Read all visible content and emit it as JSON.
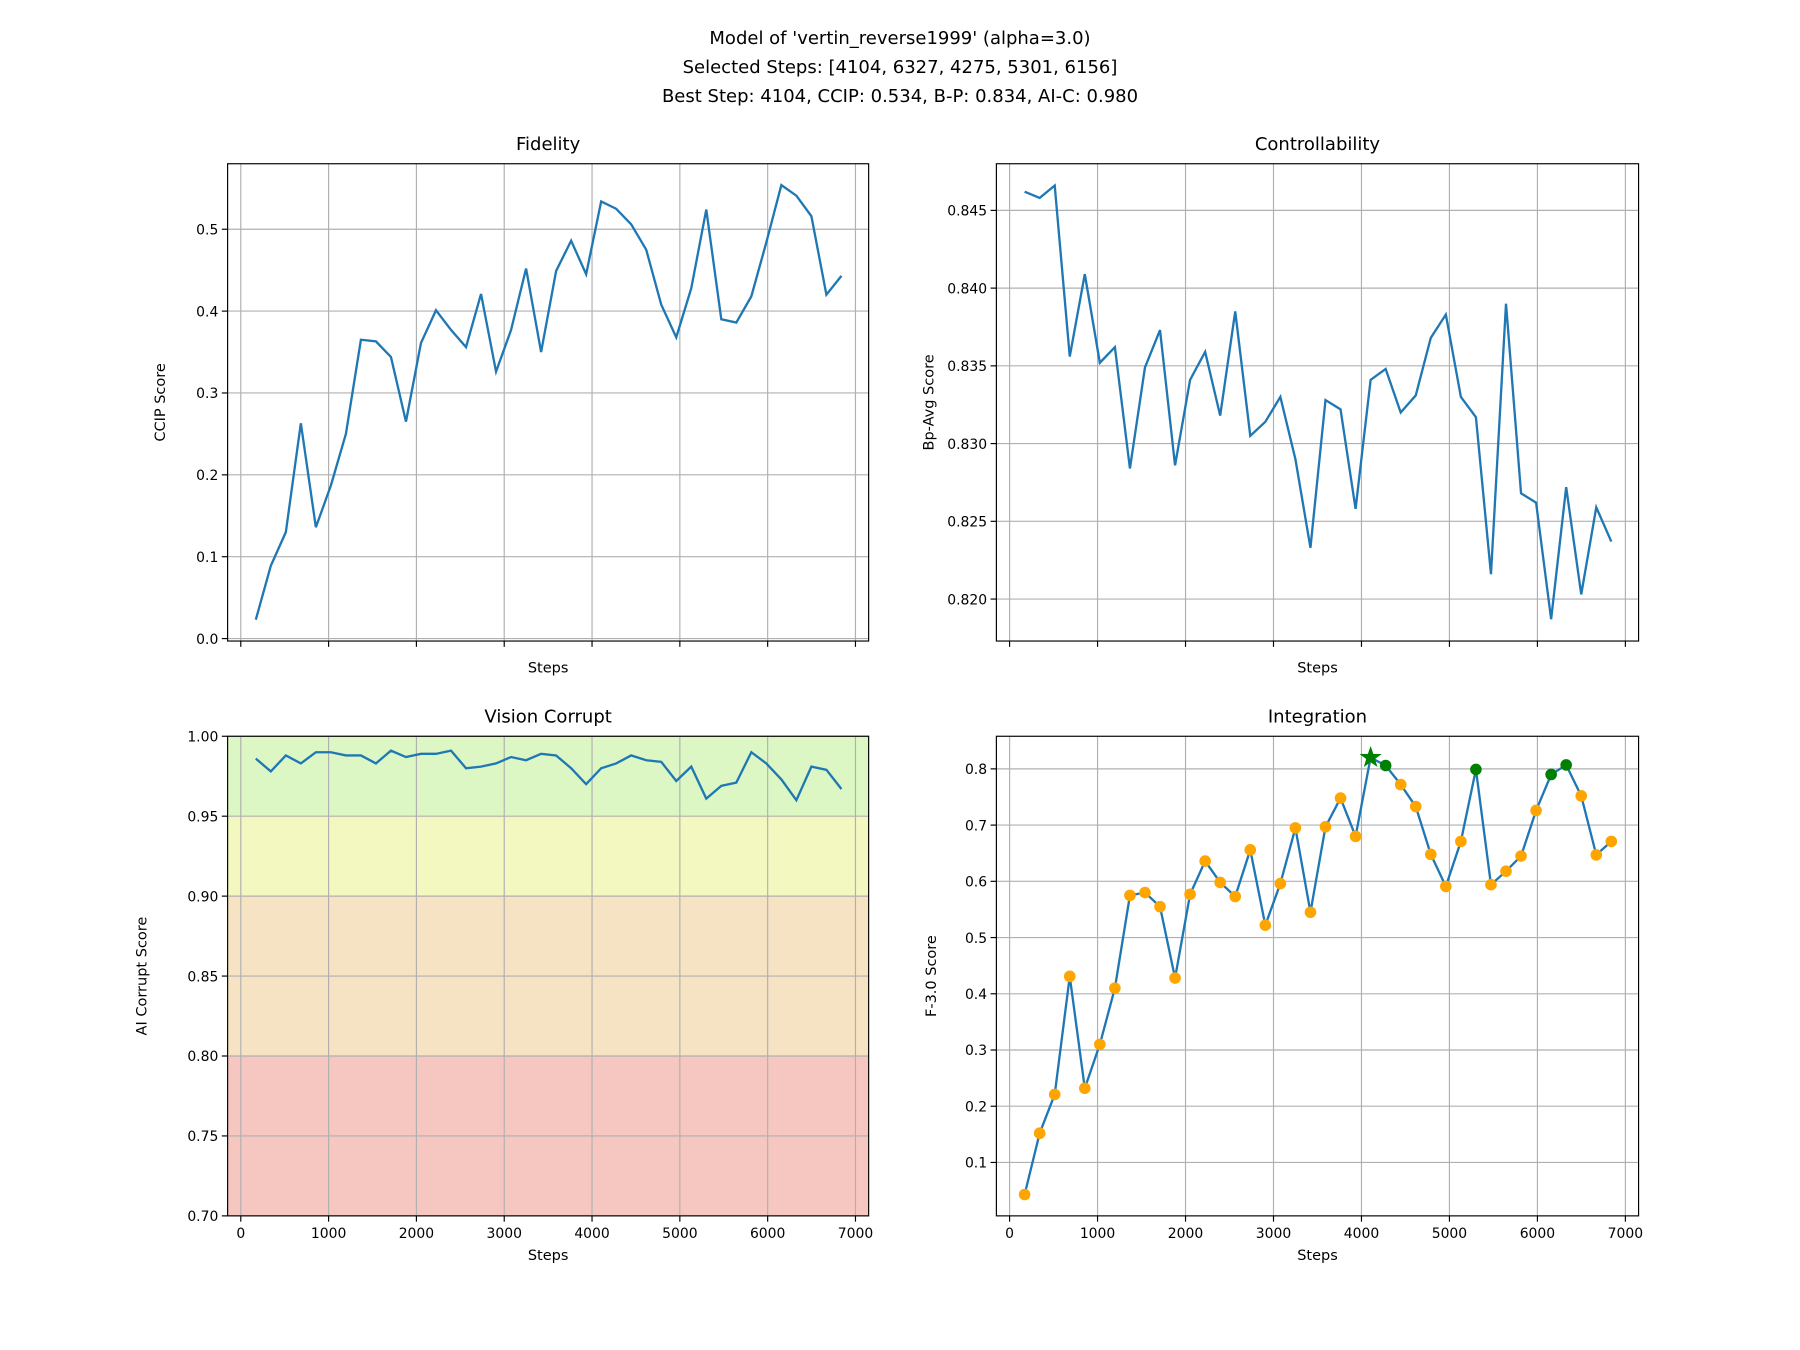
{
  "suptitle": [
    "Model of 'vertin_reverse1999' (alpha=3.0)",
    "Selected Steps: [4104, 6327, 4275, 5301, 6156]",
    "Best Step: 4104, CCIP: 0.534, B-P: 0.834, AI-C: 0.980"
  ],
  "colors": {
    "line": "#1f77b4",
    "point": "#ffa500",
    "selected": "#008000",
    "grid": "#b0b0b0",
    "bands": {
      "good": "#dcf7c4",
      "ok": "#f3f7c0",
      "warn": "#f5e3c3",
      "bad": "#f5c7c0"
    }
  },
  "chart_data": [
    {
      "id": "fidelity",
      "type": "line",
      "title": "Fidelity",
      "xlabel": "Steps",
      "ylabel": "CCIP Score",
      "xlim": [
        -150,
        7150
      ],
      "ylim": [
        -0.003,
        0.58
      ],
      "yticks": [
        0.0,
        0.1,
        0.2,
        0.3,
        0.4,
        0.5
      ],
      "ytick_fmt": 1,
      "xtick_labels": false,
      "grid": true,
      "y": [
        0.023,
        0.089,
        0.13,
        0.263,
        0.136,
        0.187,
        0.25,
        0.365,
        0.363,
        0.344,
        0.265,
        0.361,
        0.401,
        0.377,
        0.356,
        0.421,
        0.326,
        0.377,
        0.452,
        0.35,
        0.449,
        0.486,
        0.445,
        0.534,
        0.525,
        0.506,
        0.475,
        0.408,
        0.368,
        0.428,
        0.524,
        0.39,
        0.386,
        0.418,
        0.484,
        0.554,
        0.541,
        0.516,
        0.42,
        0.443
      ]
    },
    {
      "id": "controllability",
      "type": "line",
      "title": "Controllability",
      "xlabel": "Steps",
      "ylabel": "Bp-Avg Score",
      "xlim": [
        -150,
        7150
      ],
      "ylim": [
        0.8173,
        0.848
      ],
      "yticks": [
        0.82,
        0.825,
        0.83,
        0.835,
        0.84,
        0.845
      ],
      "ytick_fmt": 3,
      "xtick_labels": false,
      "grid": true,
      "y": [
        0.8462,
        0.8458,
        0.8466,
        0.8356,
        0.8409,
        0.8352,
        0.8362,
        0.8284,
        0.8349,
        0.8373,
        0.8286,
        0.8341,
        0.8359,
        0.8318,
        0.8385,
        0.8305,
        0.8314,
        0.833,
        0.829,
        0.8233,
        0.8328,
        0.8322,
        0.8258,
        0.8341,
        0.8348,
        0.832,
        0.8331,
        0.8368,
        0.8383,
        0.833,
        0.8317,
        0.8216,
        0.839,
        0.8268,
        0.8262,
        0.8187,
        0.8272,
        0.8203,
        0.8259,
        0.8237
      ]
    },
    {
      "id": "vision-corrupt",
      "type": "line",
      "title": "Vision Corrupt",
      "xlabel": "Steps",
      "ylabel": "AI Corrupt Score",
      "xlim": [
        -150,
        7150
      ],
      "ylim": [
        0.7,
        1.0
      ],
      "yticks": [
        0.7,
        0.75,
        0.8,
        0.85,
        0.9,
        0.95,
        1.0
      ],
      "ytick_fmt": 2,
      "xtick_labels": true,
      "grid": true,
      "bands": [
        {
          "from": 0.95,
          "to": 1.0,
          "color": "good"
        },
        {
          "from": 0.9,
          "to": 0.95,
          "color": "ok"
        },
        {
          "from": 0.8,
          "to": 0.9,
          "color": "warn"
        },
        {
          "from": 0.7,
          "to": 0.8,
          "color": "bad"
        }
      ],
      "y": [
        0.986,
        0.978,
        0.988,
        0.983,
        0.99,
        0.99,
        0.988,
        0.988,
        0.983,
        0.991,
        0.987,
        0.989,
        0.989,
        0.991,
        0.98,
        0.981,
        0.983,
        0.987,
        0.985,
        0.989,
        0.988,
        0.98,
        0.97,
        0.98,
        0.983,
        0.988,
        0.985,
        0.984,
        0.972,
        0.981,
        0.961,
        0.969,
        0.971,
        0.99,
        0.983,
        0.973,
        0.96,
        0.981,
        0.979,
        0.967
      ]
    },
    {
      "id": "integration",
      "type": "line",
      "title": "Integration",
      "xlabel": "Steps",
      "ylabel": "F-3.0 Score",
      "xlim": [
        -150,
        7150
      ],
      "ylim": [
        0.005,
        0.858
      ],
      "yticks": [
        0.1,
        0.2,
        0.3,
        0.4,
        0.5,
        0.6,
        0.7,
        0.8
      ],
      "ytick_fmt": 1,
      "xtick_labels": true,
      "grid": true,
      "selected_steps": [
        4104,
        6327,
        4275,
        5301,
        6156
      ],
      "best_step": 4104,
      "y": [
        0.043,
        0.152,
        0.221,
        0.431,
        0.232,
        0.31,
        0.41,
        0.575,
        0.58,
        0.555,
        0.428,
        0.577,
        0.636,
        0.598,
        0.573,
        0.656,
        0.522,
        0.596,
        0.695,
        0.545,
        0.697,
        0.748,
        0.68,
        0.82,
        0.806,
        0.772,
        0.733,
        0.648,
        0.591,
        0.671,
        0.799,
        0.594,
        0.618,
        0.645,
        0.726,
        0.79,
        0.807,
        0.752,
        0.647,
        0.671
      ]
    }
  ],
  "x_steps": [
    171,
    342,
    513,
    684,
    855,
    1026,
    1197,
    1368,
    1539,
    1710,
    1881,
    2052,
    2223,
    2394,
    2565,
    2736,
    2907,
    3078,
    3249,
    3420,
    3591,
    3762,
    3933,
    4104,
    4275,
    4446,
    4617,
    4788,
    4959,
    5130,
    5301,
    5472,
    5643,
    5814,
    5985,
    6156,
    6327,
    6498,
    6669,
    6840
  ],
  "xticks": [
    0,
    1000,
    2000,
    3000,
    4000,
    5000,
    6000,
    7000
  ]
}
